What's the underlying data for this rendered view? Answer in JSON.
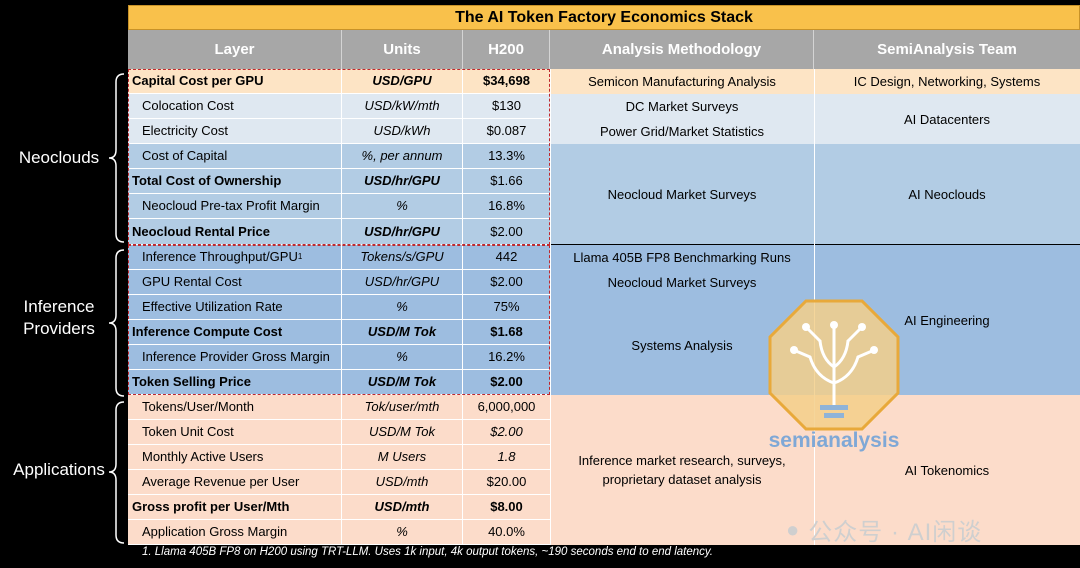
{
  "title": "The AI Token Factory Economics Stack",
  "headers": [
    "Layer",
    "Units",
    "H200",
    "Analysis Methodology",
    "SemiAnalysis Team"
  ],
  "groups": {
    "neoclouds": "Neoclouds",
    "inference_l1": "Inference",
    "inference_l2": "Providers",
    "applications": "Applications"
  },
  "rows": [
    {
      "layer": "Capital Cost per GPU",
      "units": "USD/GPU",
      "value": "$34,698"
    },
    {
      "layer": "Colocation Cost",
      "units": "USD/kW/mth",
      "value": "$130"
    },
    {
      "layer": "Electricity Cost",
      "units": "USD/kWh",
      "value": "$0.087"
    },
    {
      "layer": "Cost of Capital",
      "units": "%, per annum",
      "value": "13.3%"
    },
    {
      "layer": "Total Cost of Ownership",
      "units": "USD/hr/GPU",
      "value": "$1.66"
    },
    {
      "layer": "Neocloud Pre-tax Profit Margin",
      "units": "%",
      "value": "16.8%"
    },
    {
      "layer": "Neocloud Rental Price",
      "units": "USD/hr/GPU",
      "value": "$2.00"
    },
    {
      "layer": "Inference Throughput/GPU",
      "layer_sup": "1",
      "units": "Tokens/s/GPU",
      "value": "442"
    },
    {
      "layer": "GPU Rental Cost",
      "units": "USD/hr/GPU",
      "value": "$2.00"
    },
    {
      "layer": "Effective Utilization Rate",
      "units": "%",
      "value": "75%"
    },
    {
      "layer": "Inference Compute Cost",
      "units": "USD/M Tok",
      "value": "$1.68"
    },
    {
      "layer": "Inference Provider Gross Margin",
      "units": "%",
      "value": "16.2%"
    },
    {
      "layer": "Token Selling Price",
      "units": "USD/M Tok",
      "value": "$2.00"
    },
    {
      "layer": "Tokens/User/Month",
      "units": "Tok/user/mth",
      "value": "6,000,000"
    },
    {
      "layer": "Token Unit Cost",
      "units": "USD/M Tok",
      "value": "$2.00"
    },
    {
      "layer": "Monthly Active Users",
      "units": "M Users",
      "value": "1.8"
    },
    {
      "layer": "Average Revenue per User",
      "units": "USD/mth",
      "value": "$20.00"
    },
    {
      "layer": "Gross profit per User/Mth",
      "units": "USD/mth",
      "value": "$8.00"
    },
    {
      "layer": "Application Gross Margin",
      "units": "%",
      "value": "40.0%"
    }
  ],
  "methodology": [
    "Semicon Manufacturing Analysis",
    "DC Market Surveys",
    "Power Grid/Market Statistics",
    "Neocloud Market Surveys",
    "Llama 405B FP8 Benchmarking Runs",
    "Neocloud Market Surveys",
    "Systems Analysis",
    "Inference market research, surveys, proprietary dataset analysis"
  ],
  "team": [
    "IC Design, Networking, Systems",
    "AI Datacenters",
    "AI Neoclouds",
    "AI Engineering",
    "AI Tokenomics"
  ],
  "footnote": "1. Llama 405B FP8 on H200 using TRT-LLM. Uses 1k input, 4k output tokens, ~190 seconds end to end latency.",
  "logo_text": "semianalysis",
  "watermark": "公众号 · AI闲谈",
  "colors": {
    "title": "#f9c14b",
    "header": "#a7a7a7",
    "peach": "#fde4c5",
    "light_blue": "#dfe8f1",
    "mid_blue": "#b2cce4",
    "blue": "#9dbde0",
    "salmon": "#fcdcca",
    "red_dash": "#c0282d"
  }
}
